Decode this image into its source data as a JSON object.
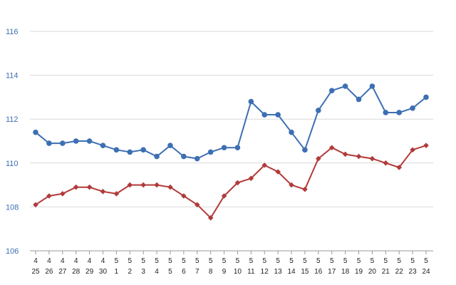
{
  "chart_data": {
    "type": "line",
    "title": "",
    "xlabel": "",
    "ylabel": "",
    "ylim": [
      106,
      116
    ],
    "yticks": [
      106,
      108,
      110,
      112,
      114,
      116
    ],
    "grid": true,
    "legend": "none",
    "categories": [
      {
        "month": "4",
        "day": "25"
      },
      {
        "month": "4",
        "day": "26"
      },
      {
        "month": "4",
        "day": "27"
      },
      {
        "month": "4",
        "day": "28"
      },
      {
        "month": "4",
        "day": "29"
      },
      {
        "month": "4",
        "day": "30"
      },
      {
        "month": "5",
        "day": "1"
      },
      {
        "month": "5",
        "day": "2"
      },
      {
        "month": "5",
        "day": "3"
      },
      {
        "month": "5",
        "day": "4"
      },
      {
        "month": "5",
        "day": "5"
      },
      {
        "month": "5",
        "day": "6"
      },
      {
        "month": "5",
        "day": "7"
      },
      {
        "month": "5",
        "day": "8"
      },
      {
        "month": "5",
        "day": "9"
      },
      {
        "month": "5",
        "day": "10"
      },
      {
        "month": "5",
        "day": "11"
      },
      {
        "month": "5",
        "day": "12"
      },
      {
        "month": "5",
        "day": "13"
      },
      {
        "month": "5",
        "day": "14"
      },
      {
        "month": "5",
        "day": "15"
      },
      {
        "month": "5",
        "day": "16"
      },
      {
        "month": "5",
        "day": "17"
      },
      {
        "month": "5",
        "day": "18"
      },
      {
        "month": "5",
        "day": "19"
      },
      {
        "month": "5",
        "day": "20"
      },
      {
        "month": "5",
        "day": "21"
      },
      {
        "month": "5",
        "day": "22"
      },
      {
        "month": "5",
        "day": "23"
      },
      {
        "month": "5",
        "day": "24"
      }
    ],
    "series": [
      {
        "color": "#3d6fb3",
        "marker": "circle",
        "values": [
          111.4,
          110.9,
          110.9,
          111.0,
          111.0,
          110.8,
          110.6,
          110.5,
          110.6,
          110.3,
          110.8,
          110.3,
          110.2,
          110.5,
          110.7,
          110.7,
          112.8,
          112.2,
          112.2,
          111.4,
          110.6,
          112.4,
          113.3,
          113.5,
          112.9,
          113.5,
          112.3,
          112.3,
          112.5,
          113.0
        ]
      },
      {
        "color": "#b23a3a",
        "marker": "diamond",
        "values": [
          108.1,
          108.5,
          108.6,
          108.9,
          108.9,
          108.7,
          108.6,
          109.0,
          109.0,
          109.0,
          108.9,
          108.5,
          108.1,
          107.5,
          108.5,
          109.1,
          109.3,
          109.9,
          109.6,
          109.0,
          108.8,
          110.2,
          110.7,
          110.4,
          110.3,
          110.2,
          110.0,
          109.8,
          110.6,
          110.8
        ]
      }
    ],
    "colors": {
      "grid": "#d9d9d9",
      "axis": "#999999",
      "ytick_text": "#3d6fb3",
      "xtick_text": "#222222"
    }
  }
}
